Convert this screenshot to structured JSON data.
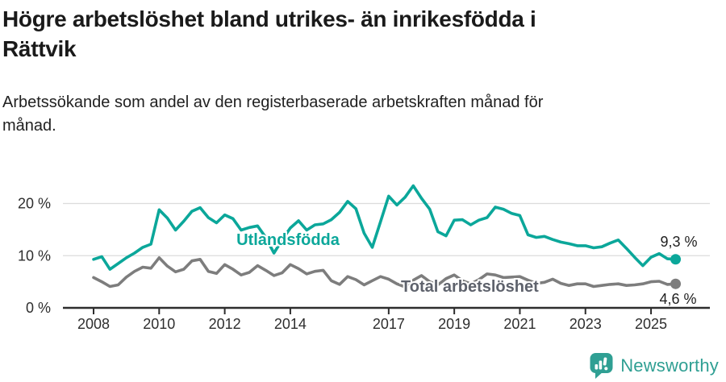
{
  "header": {
    "title_lines": [
      "Högre arbetslöshet bland utrikes- än inrikesfödda i",
      "Rättvik"
    ],
    "subtitle_lines": [
      "Arbetssökande som andel av den registerbaserade arbetskraften månad för",
      "månad."
    ]
  },
  "chart_data": {
    "type": "line",
    "title": "Högre arbetslöshet bland utrikes- än inrikesfödda i Rättvik",
    "subtitle": "Arbetssökande som andel av den registerbaserade arbetskraften månad för månad.",
    "unit": "%",
    "x_axis": {
      "range": [
        2007.05,
        2026.8
      ],
      "ticks": [
        2008,
        2010,
        2012,
        2014,
        2017,
        2019,
        2021,
        2023,
        2025
      ],
      "tick_labels": [
        "2008",
        "2010",
        "2012",
        "2014",
        "2017",
        "2019",
        "2021",
        "2023",
        "2025"
      ]
    },
    "y_axis": {
      "range": [
        0,
        27
      ],
      "ticks": [
        0,
        10,
        20
      ],
      "tick_labels": [
        "0 %",
        "10 %",
        "20 %"
      ],
      "grid": true
    },
    "x_start": 2008.0,
    "x_step": 0.25,
    "series": [
      {
        "name": "Utlandsfödda",
        "color": "#0ba79a",
        "end_label": "9,3 %",
        "end_value": 9.3,
        "values": [
          9.3,
          9.8,
          7.4,
          8.5,
          9.6,
          10.5,
          11.6,
          12.2,
          18.8,
          17.2,
          14.9,
          16.6,
          18.5,
          19.2,
          17.3,
          16.3,
          17.8,
          17.1,
          14.9,
          15.4,
          15.7,
          13.5,
          10.5,
          13.0,
          15.3,
          16.7,
          14.9,
          15.9,
          16.1,
          16.9,
          18.3,
          20.4,
          19.0,
          14.3,
          11.6,
          16.5,
          21.4,
          19.7,
          21.2,
          23.4,
          21.0,
          18.9,
          14.6,
          13.8,
          16.8,
          16.9,
          15.9,
          16.8,
          17.3,
          19.3,
          18.9,
          18.1,
          17.7,
          14.0,
          13.5,
          13.7,
          13.1,
          12.6,
          12.3,
          11.9,
          11.9,
          11.5,
          11.7,
          12.4,
          13.0,
          11.4,
          9.7,
          8.1,
          9.7,
          10.4,
          9.4,
          9.3
        ]
      },
      {
        "name": "Total arbetslöshet",
        "color": "#7d7d7d",
        "label_color": "#5e626c",
        "end_label": "4,6 %",
        "end_value": 4.6,
        "values": [
          5.8,
          5.0,
          4.1,
          4.4,
          5.9,
          7.0,
          7.8,
          7.6,
          9.6,
          8.0,
          6.9,
          7.4,
          9.0,
          9.3,
          7.0,
          6.6,
          8.3,
          7.4,
          6.3,
          6.8,
          8.1,
          7.2,
          6.2,
          6.7,
          8.3,
          7.5,
          6.5,
          7.0,
          7.2,
          5.2,
          4.5,
          6.0,
          5.4,
          4.4,
          5.2,
          6.0,
          5.5,
          4.6,
          4.0,
          5.3,
          6.2,
          5.0,
          4.4,
          5.6,
          6.3,
          5.2,
          4.6,
          5.4,
          6.5,
          6.3,
          5.8,
          5.9,
          6.0,
          5.3,
          4.7,
          4.9,
          5.5,
          4.7,
          4.3,
          4.6,
          4.6,
          4.1,
          4.3,
          4.5,
          4.6,
          4.3,
          4.4,
          4.6,
          5.0,
          5.1,
          4.5,
          4.6
        ]
      }
    ],
    "colors": {
      "axis": "#2d2d2d",
      "gridline": "#dcdcdc",
      "tick_text": "#2e2e2e",
      "end_label_text": "#1f1f1f"
    },
    "legend_position": "inline-labels"
  },
  "footer": {
    "brand": "Newsworthy",
    "brand_color": "#2f9f93",
    "logo_icon": "bar-chart-speech-bubble-icon"
  }
}
